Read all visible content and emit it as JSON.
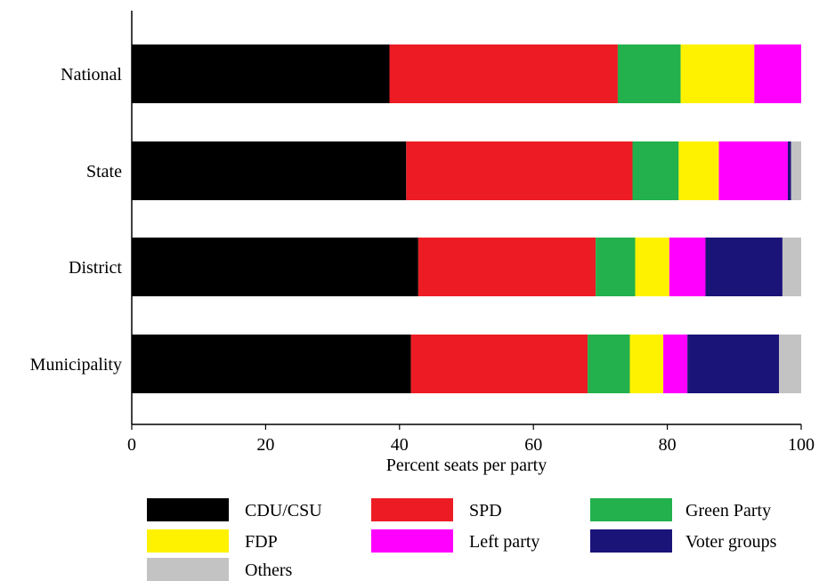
{
  "chart_data": {
    "type": "bar",
    "orientation": "horizontal",
    "stacked": true,
    "categories": [
      "National",
      "State",
      "District",
      "Municipality"
    ],
    "xlabel": "Percent seats per party",
    "ylabel": "",
    "xlim": [
      0,
      100
    ],
    "xticks": [
      "0",
      "20",
      "40",
      "60",
      "80",
      "100"
    ],
    "grid": false,
    "legend_position": "bottom",
    "series": [
      {
        "name": "CDU/CSU",
        "color": "#000000",
        "values": [
          38.5,
          41.0,
          42.8,
          41.7
        ]
      },
      {
        "name": "SPD",
        "color": "#ed1c24",
        "values": [
          34.1,
          33.8,
          26.5,
          26.4
        ]
      },
      {
        "name": "Green Party",
        "color": "#22b14c",
        "values": [
          9.4,
          6.9,
          5.9,
          6.3
        ]
      },
      {
        "name": "FDP",
        "color": "#fff200",
        "values": [
          11.0,
          6.0,
          5.1,
          5.0
        ]
      },
      {
        "name": "Left party",
        "color": "#ff00ff",
        "values": [
          7.0,
          10.3,
          5.4,
          3.6
        ]
      },
      {
        "name": "Voter groups",
        "color": "#1b1478",
        "values": [
          0.0,
          0.5,
          11.5,
          13.7
        ]
      },
      {
        "name": "Others",
        "color": "#c3c3c3",
        "values": [
          0.0,
          1.5,
          2.8,
          3.3
        ]
      }
    ]
  }
}
